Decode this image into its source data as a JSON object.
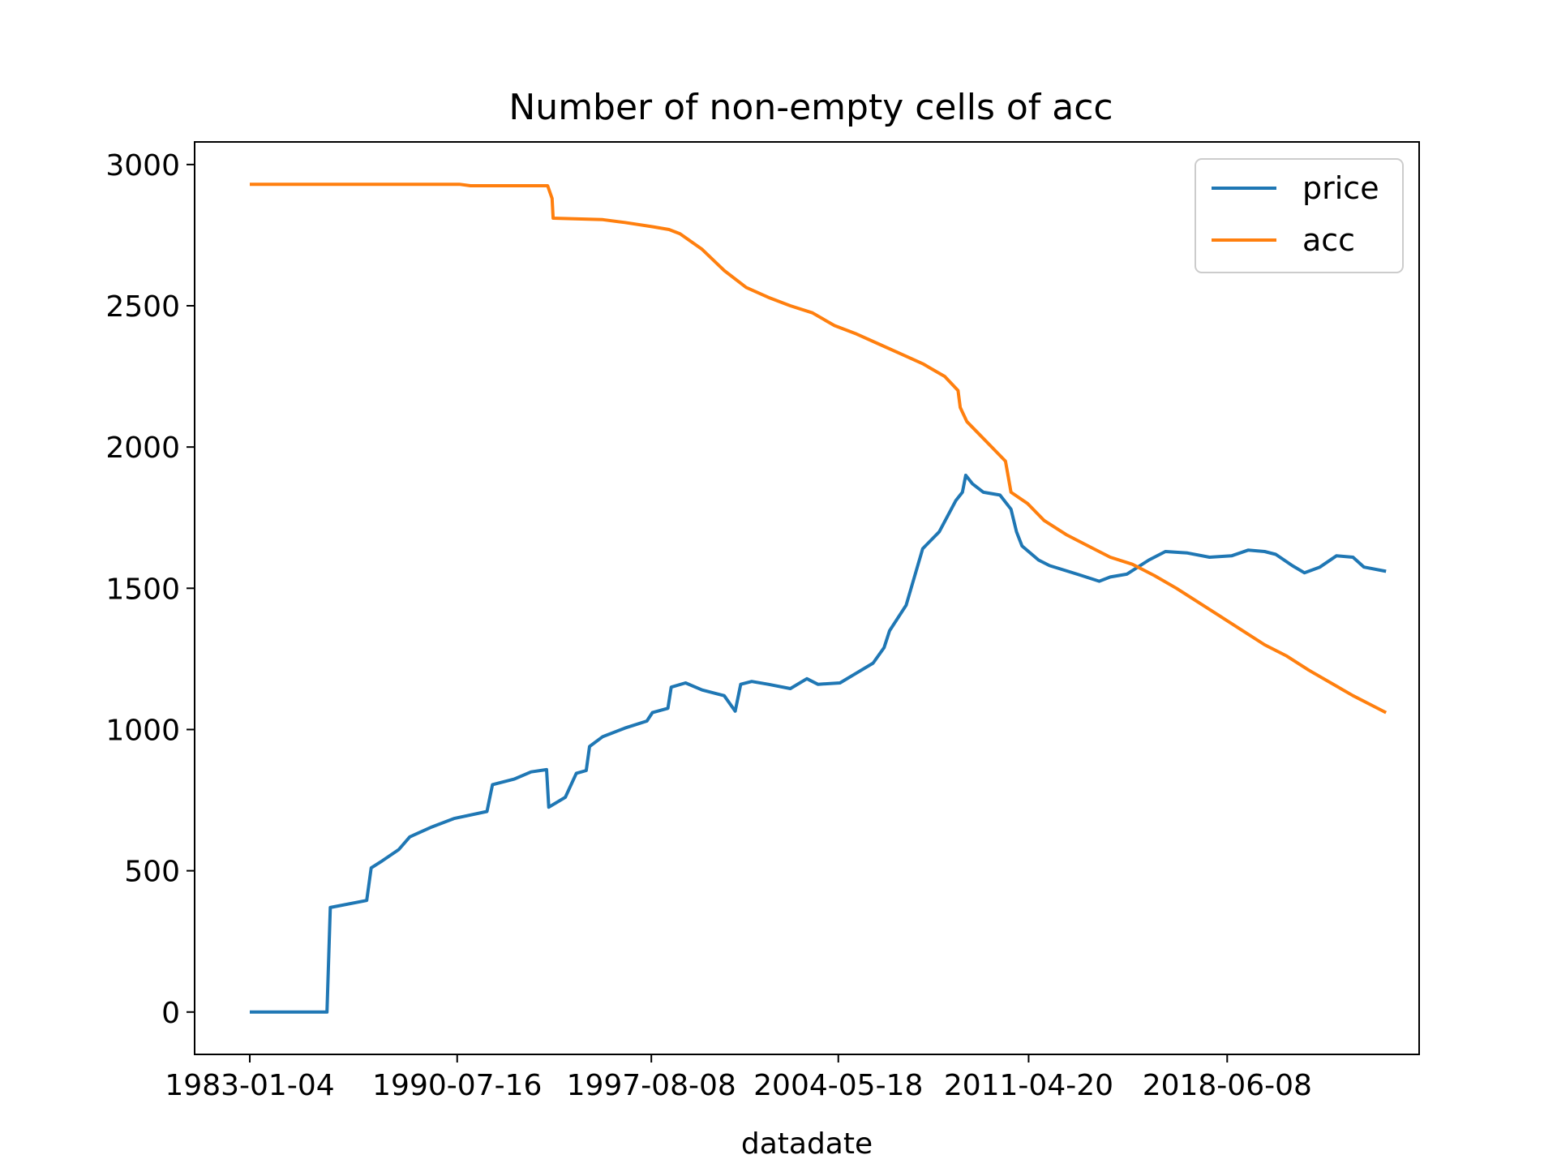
{
  "chart_data": {
    "type": "line",
    "title": "Number of non-empty cells of acc",
    "xlabel": "datadate",
    "ylabel": "",
    "x_tick_labels": [
      "1983-01-04",
      "1990-07-16",
      "1997-08-08",
      "2004-05-18",
      "2011-04-20",
      "2018-06-08"
    ],
    "x_tick_indices": [
      0,
      1880,
      3640,
      5335,
      7060,
      8860
    ],
    "xlim": [
      -500,
      10600
    ],
    "ylim": [
      -150,
      3080
    ],
    "y_ticks": [
      0,
      500,
      1000,
      1500,
      2000,
      2500,
      3000
    ],
    "grid": false,
    "legend": {
      "position": "top-right",
      "entries": [
        "price",
        "acc"
      ]
    },
    "series": [
      {
        "name": "price",
        "color": "#1f77b4",
        "points": [
          [
            0,
            0
          ],
          [
            700,
            0
          ],
          [
            730,
            370
          ],
          [
            1060,
            395
          ],
          [
            1100,
            510
          ],
          [
            1200,
            535
          ],
          [
            1350,
            575
          ],
          [
            1450,
            620
          ],
          [
            1650,
            655
          ],
          [
            1850,
            685
          ],
          [
            2150,
            710
          ],
          [
            2200,
            805
          ],
          [
            2400,
            825
          ],
          [
            2550,
            850
          ],
          [
            2690,
            858
          ],
          [
            2710,
            725
          ],
          [
            2860,
            760
          ],
          [
            2960,
            845
          ],
          [
            3050,
            855
          ],
          [
            3080,
            940
          ],
          [
            3200,
            975
          ],
          [
            3400,
            1005
          ],
          [
            3600,
            1030
          ],
          [
            3650,
            1060
          ],
          [
            3790,
            1075
          ],
          [
            3820,
            1150
          ],
          [
            3950,
            1165
          ],
          [
            4100,
            1140
          ],
          [
            4300,
            1120
          ],
          [
            4400,
            1065
          ],
          [
            4450,
            1160
          ],
          [
            4550,
            1170
          ],
          [
            4700,
            1160
          ],
          [
            4900,
            1145
          ],
          [
            5050,
            1180
          ],
          [
            5150,
            1160
          ],
          [
            5350,
            1165
          ],
          [
            5500,
            1200
          ],
          [
            5650,
            1235
          ],
          [
            5750,
            1290
          ],
          [
            5800,
            1350
          ],
          [
            5950,
            1440
          ],
          [
            6100,
            1640
          ],
          [
            6250,
            1700
          ],
          [
            6400,
            1810
          ],
          [
            6460,
            1840
          ],
          [
            6490,
            1900
          ],
          [
            6550,
            1870
          ],
          [
            6650,
            1840
          ],
          [
            6800,
            1830
          ],
          [
            6900,
            1780
          ],
          [
            6950,
            1700
          ],
          [
            7000,
            1650
          ],
          [
            7150,
            1600
          ],
          [
            7250,
            1580
          ],
          [
            7500,
            1550
          ],
          [
            7700,
            1525
          ],
          [
            7800,
            1540
          ],
          [
            7950,
            1550
          ],
          [
            8150,
            1600
          ],
          [
            8300,
            1630
          ],
          [
            8500,
            1625
          ],
          [
            8700,
            1610
          ],
          [
            8900,
            1615
          ],
          [
            9050,
            1635
          ],
          [
            9200,
            1630
          ],
          [
            9300,
            1620
          ],
          [
            9450,
            1580
          ],
          [
            9560,
            1555
          ],
          [
            9700,
            1575
          ],
          [
            9850,
            1615
          ],
          [
            10000,
            1610
          ],
          [
            10100,
            1575
          ],
          [
            10300,
            1560
          ]
        ]
      },
      {
        "name": "acc",
        "color": "#ff7f0e",
        "points": [
          [
            0,
            2930
          ],
          [
            1900,
            2930
          ],
          [
            2000,
            2925
          ],
          [
            2700,
            2925
          ],
          [
            2740,
            2880
          ],
          [
            2750,
            2810
          ],
          [
            3200,
            2805
          ],
          [
            3400,
            2795
          ],
          [
            3650,
            2780
          ],
          [
            3800,
            2770
          ],
          [
            3900,
            2755
          ],
          [
            4100,
            2700
          ],
          [
            4300,
            2625
          ],
          [
            4500,
            2565
          ],
          [
            4700,
            2530
          ],
          [
            4900,
            2500
          ],
          [
            5100,
            2475
          ],
          [
            5300,
            2430
          ],
          [
            5500,
            2400
          ],
          [
            5700,
            2365
          ],
          [
            5900,
            2330
          ],
          [
            6100,
            2295
          ],
          [
            6300,
            2250
          ],
          [
            6420,
            2200
          ],
          [
            6440,
            2140
          ],
          [
            6500,
            2090
          ],
          [
            6650,
            2030
          ],
          [
            6750,
            1990
          ],
          [
            6850,
            1950
          ],
          [
            6900,
            1840
          ],
          [
            7050,
            1800
          ],
          [
            7200,
            1740
          ],
          [
            7400,
            1690
          ],
          [
            7600,
            1650
          ],
          [
            7800,
            1610
          ],
          [
            8000,
            1585
          ],
          [
            8200,
            1545
          ],
          [
            8400,
            1500
          ],
          [
            8600,
            1450
          ],
          [
            8800,
            1400
          ],
          [
            9000,
            1350
          ],
          [
            9200,
            1300
          ],
          [
            9400,
            1260
          ],
          [
            9600,
            1210
          ],
          [
            9800,
            1165
          ],
          [
            10000,
            1120
          ],
          [
            10200,
            1080
          ],
          [
            10300,
            1060
          ]
        ]
      }
    ]
  }
}
